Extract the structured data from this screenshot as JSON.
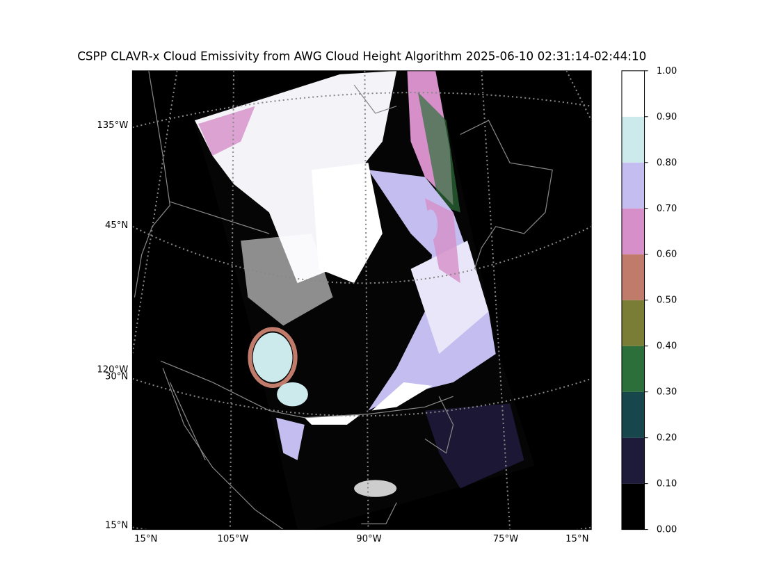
{
  "title": "CSPP CLAVR-x Cloud Emissivity from AWG Cloud Height Algorithm 2025-06-10 02:31:14-02:44:10",
  "map": {
    "left_labels": [
      "135°W",
      "45°N",
      "120°W",
      "30°N",
      "15°N"
    ],
    "bottom_labels": [
      "15°N",
      "105°W",
      "90°W",
      "75°W",
      "15°N"
    ]
  },
  "colorbar": {
    "lim": [
      0,
      1
    ],
    "ticks": [
      {
        "value": 0,
        "label": "0.00"
      },
      {
        "value": 0.1,
        "label": "0.10"
      },
      {
        "value": 0.2,
        "label": "0.20"
      },
      {
        "value": 0.3,
        "label": "0.30"
      },
      {
        "value": 0.4,
        "label": "0.40"
      },
      {
        "value": 0.5,
        "label": "0.50"
      },
      {
        "value": 0.6,
        "label": "0.60"
      },
      {
        "value": 0.7,
        "label": "0.70"
      },
      {
        "value": 0.8,
        "label": "0.80"
      },
      {
        "value": 0.9,
        "label": "0.90"
      },
      {
        "value": 1,
        "label": "1.00"
      }
    ],
    "colors": [
      "#000000",
      "#1e1a3a",
      "#17474d",
      "#2d6f3a",
      "#7a7d36",
      "#c07b6b",
      "#d68fc8",
      "#c4bef0",
      "#cce9ec",
      "#ffffff"
    ]
  }
}
